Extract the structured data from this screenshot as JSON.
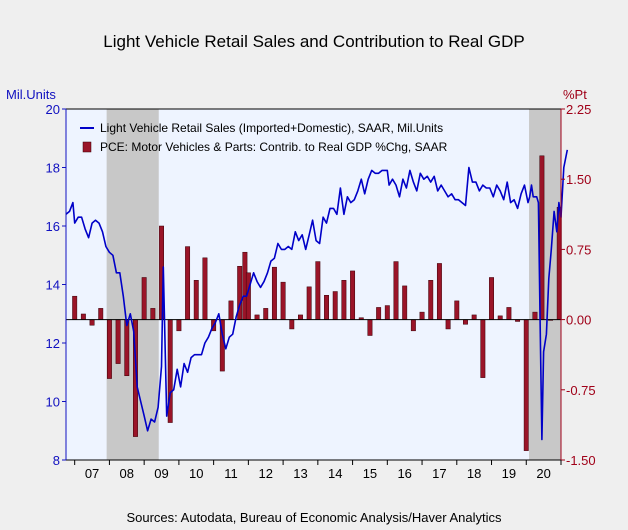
{
  "chart_data": {
    "type": "bar+line",
    "title": "Light Vehicle Retail Sales and Contribution to Real GDP",
    "left_axis": {
      "unit_label": "Mil.Units",
      "range": [
        8,
        20
      ],
      "ticks": [
        "8",
        "10",
        "12",
        "14",
        "16",
        "18",
        "20"
      ],
      "color": "#1010c0"
    },
    "right_axis": {
      "unit_label": "%Pt",
      "range": [
        -1.5,
        2.25
      ],
      "ticks": [
        "-1.50",
        "-0.75",
        "0.00",
        "0.75",
        "1.50",
        "2.25"
      ],
      "color": "#a00018"
    },
    "x_axis": {
      "start": 2006.75,
      "end": 2021.0,
      "tick_labels": [
        "07",
        "08",
        "09",
        "10",
        "11",
        "12",
        "13",
        "14",
        "15",
        "16",
        "17",
        "18",
        "19",
        "20"
      ]
    },
    "recession_shading": [
      [
        2007.92,
        2009.42
      ],
      [
        2020.08,
        2021.0
      ]
    ],
    "series": [
      {
        "name": "Light Vehicle Retail Sales (Imported+Domestic), SAAR, Mil.Units",
        "kind": "line",
        "axis": "left",
        "color": "#0000c8",
        "points": [
          [
            2006.75,
            16.4
          ],
          [
            2006.85,
            16.5
          ],
          [
            2006.95,
            16.8
          ],
          [
            2007.0,
            16.1
          ],
          [
            2007.1,
            16.3
          ],
          [
            2007.2,
            16.3
          ],
          [
            2007.3,
            15.9
          ],
          [
            2007.4,
            15.6
          ],
          [
            2007.5,
            16.1
          ],
          [
            2007.6,
            16.2
          ],
          [
            2007.7,
            16.1
          ],
          [
            2007.8,
            15.8
          ],
          [
            2007.9,
            15.3
          ],
          [
            2008.0,
            15.1
          ],
          [
            2008.1,
            15.0
          ],
          [
            2008.2,
            14.4
          ],
          [
            2008.3,
            14.4
          ],
          [
            2008.4,
            13.6
          ],
          [
            2008.5,
            12.6
          ],
          [
            2008.6,
            13.0
          ],
          [
            2008.7,
            12.4
          ],
          [
            2008.8,
            10.5
          ],
          [
            2008.9,
            10.0
          ],
          [
            2009.0,
            9.5
          ],
          [
            2009.1,
            9.0
          ],
          [
            2009.2,
            9.4
          ],
          [
            2009.3,
            9.3
          ],
          [
            2009.4,
            9.8
          ],
          [
            2009.5,
            11.2
          ],
          [
            2009.55,
            14.6
          ],
          [
            2009.65,
            9.5
          ],
          [
            2009.75,
            10.3
          ],
          [
            2009.85,
            10.4
          ],
          [
            2009.95,
            11.1
          ],
          [
            2010.05,
            10.5
          ],
          [
            2010.15,
            11.3
          ],
          [
            2010.25,
            11.0
          ],
          [
            2010.35,
            11.5
          ],
          [
            2010.45,
            11.6
          ],
          [
            2010.55,
            11.6
          ],
          [
            2010.65,
            11.6
          ],
          [
            2010.75,
            12.0
          ],
          [
            2010.85,
            12.2
          ],
          [
            2010.95,
            12.5
          ],
          [
            2011.05,
            12.7
          ],
          [
            2011.15,
            13.0
          ],
          [
            2011.25,
            12.3
          ],
          [
            2011.35,
            11.8
          ],
          [
            2011.45,
            12.2
          ],
          [
            2011.55,
            12.3
          ],
          [
            2011.65,
            12.9
          ],
          [
            2011.75,
            13.3
          ],
          [
            2011.85,
            13.6
          ],
          [
            2011.95,
            13.6
          ],
          [
            2012.05,
            14.0
          ],
          [
            2012.15,
            14.4
          ],
          [
            2012.25,
            14.1
          ],
          [
            2012.35,
            13.9
          ],
          [
            2012.45,
            14.1
          ],
          [
            2012.55,
            14.4
          ],
          [
            2012.65,
            14.8
          ],
          [
            2012.75,
            14.9
          ],
          [
            2012.85,
            15.4
          ],
          [
            2012.95,
            15.2
          ],
          [
            2013.05,
            15.2
          ],
          [
            2013.15,
            15.3
          ],
          [
            2013.25,
            15.2
          ],
          [
            2013.35,
            15.8
          ],
          [
            2013.45,
            15.5
          ],
          [
            2013.55,
            15.7
          ],
          [
            2013.65,
            15.2
          ],
          [
            2013.75,
            15.7
          ],
          [
            2013.85,
            16.2
          ],
          [
            2013.95,
            15.5
          ],
          [
            2014.05,
            15.4
          ],
          [
            2014.15,
            16.3
          ],
          [
            2014.25,
            16.1
          ],
          [
            2014.35,
            16.6
          ],
          [
            2014.45,
            16.6
          ],
          [
            2014.55,
            16.4
          ],
          [
            2014.65,
            17.3
          ],
          [
            2014.75,
            16.4
          ],
          [
            2014.85,
            17.0
          ],
          [
            2014.95,
            16.8
          ],
          [
            2015.05,
            16.9
          ],
          [
            2015.15,
            17.2
          ],
          [
            2015.25,
            17.6
          ],
          [
            2015.35,
            17.1
          ],
          [
            2015.45,
            17.6
          ],
          [
            2015.55,
            17.9
          ],
          [
            2015.65,
            17.8
          ],
          [
            2015.75,
            17.8
          ],
          [
            2015.85,
            17.9
          ],
          [
            2016.0,
            17.9
          ],
          [
            2016.05,
            17.4
          ],
          [
            2016.15,
            17.6
          ],
          [
            2016.25,
            17.4
          ],
          [
            2016.35,
            17.0
          ],
          [
            2016.45,
            17.6
          ],
          [
            2016.55,
            17.3
          ],
          [
            2016.65,
            17.9
          ],
          [
            2016.75,
            17.5
          ],
          [
            2016.85,
            17.2
          ],
          [
            2016.95,
            17.8
          ],
          [
            2017.05,
            17.6
          ],
          [
            2017.15,
            17.7
          ],
          [
            2017.25,
            17.5
          ],
          [
            2017.35,
            17.7
          ],
          [
            2017.45,
            17.2
          ],
          [
            2017.55,
            17.4
          ],
          [
            2017.65,
            17.2
          ],
          [
            2017.75,
            17.0
          ],
          [
            2017.85,
            17.1
          ],
          [
            2017.95,
            16.9
          ],
          [
            2018.05,
            16.9
          ],
          [
            2018.15,
            16.8
          ],
          [
            2018.25,
            16.7
          ],
          [
            2018.35,
            18.0
          ],
          [
            2018.45,
            17.5
          ],
          [
            2018.55,
            17.5
          ],
          [
            2018.65,
            17.2
          ],
          [
            2018.75,
            17.4
          ],
          [
            2018.85,
            17.3
          ],
          [
            2018.95,
            17.3
          ],
          [
            2019.05,
            17.0
          ],
          [
            2019.15,
            17.4
          ],
          [
            2019.25,
            17.2
          ],
          [
            2019.35,
            16.9
          ],
          [
            2019.45,
            17.5
          ],
          [
            2019.55,
            16.8
          ],
          [
            2019.65,
            16.9
          ],
          [
            2019.75,
            16.6
          ],
          [
            2019.85,
            17.1
          ],
          [
            2019.95,
            17.4
          ],
          [
            2020.05,
            16.8
          ],
          [
            2020.1,
            17.0
          ],
          [
            2020.15,
            17.4
          ],
          [
            2020.2,
            17.0
          ],
          [
            2020.3,
            17.0
          ],
          [
            2020.35,
            16.8
          ],
          [
            2020.4,
            12.5
          ],
          [
            2020.45,
            8.7
          ],
          [
            2020.5,
            11.7
          ],
          [
            2020.58,
            12.3
          ],
          [
            2020.65,
            14.2
          ],
          [
            2020.72,
            15.2
          ],
          [
            2020.8,
            16.5
          ],
          [
            2020.88,
            15.8
          ],
          [
            2020.94,
            16.8
          ],
          [
            2021.0,
            16.3
          ],
          [
            2021.08,
            18.0
          ],
          [
            2021.18,
            18.6
          ]
        ]
      },
      {
        "name": "PCE: Motor Vehicles & Parts: Contrib. to Real GDP %Chg, SAAR",
        "kind": "bar",
        "axis": "right",
        "color": "#9a1428",
        "points": [
          [
            2007.0,
            0.25
          ],
          [
            2007.25,
            0.06
          ],
          [
            2007.5,
            -0.06
          ],
          [
            2007.75,
            0.12
          ],
          [
            2008.0,
            -0.63
          ],
          [
            2008.25,
            -0.47
          ],
          [
            2008.5,
            -0.6
          ],
          [
            2008.75,
            -1.25
          ],
          [
            2009.0,
            0.45
          ],
          [
            2009.25,
            0.12
          ],
          [
            2009.5,
            1.0
          ],
          [
            2009.75,
            -1.1
          ],
          [
            2010.0,
            -0.12
          ],
          [
            2010.25,
            0.78
          ],
          [
            2010.5,
            0.42
          ],
          [
            2010.75,
            0.66
          ],
          [
            2011.0,
            -0.12
          ],
          [
            2011.25,
            -0.55
          ],
          [
            2011.5,
            0.2
          ],
          [
            2011.75,
            0.57
          ],
          [
            2011.9,
            0.72
          ],
          [
            2012.0,
            0.5
          ],
          [
            2012.25,
            0.05
          ],
          [
            2012.5,
            0.12
          ],
          [
            2012.75,
            0.56
          ],
          [
            2013.0,
            0.4
          ],
          [
            2013.25,
            -0.1
          ],
          [
            2013.5,
            0.05
          ],
          [
            2013.75,
            0.35
          ],
          [
            2014.0,
            0.62
          ],
          [
            2014.25,
            0.26
          ],
          [
            2014.5,
            0.3
          ],
          [
            2014.75,
            0.42
          ],
          [
            2015.0,
            0.52
          ],
          [
            2015.25,
            0.02
          ],
          [
            2015.5,
            -0.17
          ],
          [
            2015.75,
            0.13
          ],
          [
            2016.0,
            0.15
          ],
          [
            2016.25,
            0.62
          ],
          [
            2016.5,
            0.36
          ],
          [
            2016.75,
            -0.12
          ],
          [
            2017.0,
            0.08
          ],
          [
            2017.25,
            0.42
          ],
          [
            2017.5,
            0.6
          ],
          [
            2017.75,
            -0.1
          ],
          [
            2018.0,
            0.2
          ],
          [
            2018.25,
            -0.05
          ],
          [
            2018.5,
            0.05
          ],
          [
            2018.75,
            -0.62
          ],
          [
            2019.0,
            0.45
          ],
          [
            2019.25,
            0.04
          ],
          [
            2019.5,
            0.13
          ],
          [
            2019.75,
            -0.02
          ],
          [
            2020.0,
            -1.4
          ],
          [
            2020.25,
            0.08
          ],
          [
            2020.45,
            1.75
          ],
          [
            2020.7,
            0.0
          ],
          [
            2020.95,
            1.2
          ]
        ]
      }
    ],
    "legend": [
      "Light Vehicle Retail Sales (Imported+Domestic), SAAR, Mil.Units",
      "PCE: Motor Vehicles & Parts: Contrib. to Real GDP %Chg, SAAR"
    ],
    "legend_position": "top-left",
    "source": "Sources:  Autodata, Bureau of Economic Analysis/Haver Analytics"
  }
}
